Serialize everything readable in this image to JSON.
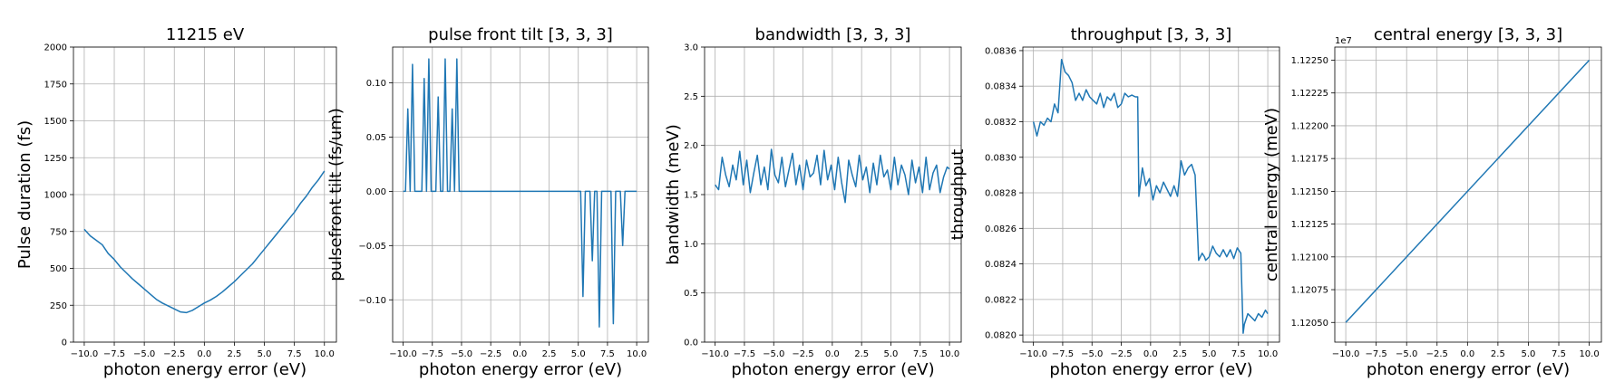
{
  "figure": {
    "panel_count": 5,
    "line_color": "#1f77b4",
    "grid": true
  },
  "chart_data": [
    {
      "type": "line",
      "title": "11215 eV",
      "xlabel": "photon energy error (eV)",
      "ylabel": "Pulse duration (fs)",
      "xlim": [
        -10.9,
        11.0
      ],
      "ylim": [
        0,
        2000
      ],
      "xticks": [
        -10,
        -7.5,
        -5,
        -2.5,
        0,
        2.5,
        5,
        7.5,
        10
      ],
      "xtick_labels": [
        "−10.0",
        "−7.5",
        "−5.0",
        "−2.5",
        "0.0",
        "2.5",
        "5.0",
        "7.5",
        "10.0"
      ],
      "yticks": [
        0,
        250,
        500,
        750,
        1000,
        1250,
        1500,
        1750,
        2000
      ],
      "ytick_labels": [
        "0",
        "250",
        "500",
        "750",
        "1000",
        "1250",
        "1500",
        "1750",
        "2000"
      ],
      "offset_label": "",
      "series": [
        {
          "x": [
            -10,
            -9.5,
            -9,
            -8.5,
            -8,
            -7.5,
            -7,
            -6.5,
            -6,
            -5.5,
            -5,
            -4.5,
            -4,
            -3.5,
            -3,
            -2.5,
            -2,
            -1.5,
            -1,
            -0.5,
            0,
            0.5,
            1,
            1.5,
            2,
            2.5,
            3,
            3.5,
            4,
            4.5,
            5,
            5.5,
            6,
            6.5,
            7,
            7.5,
            8,
            8.5,
            9,
            9.5,
            10
          ],
          "y": [
            765,
            720,
            690,
            660,
            600,
            560,
            510,
            470,
            430,
            395,
            360,
            325,
            290,
            265,
            245,
            225,
            205,
            200,
            215,
            240,
            265,
            285,
            310,
            340,
            375,
            410,
            450,
            490,
            530,
            580,
            630,
            680,
            730,
            780,
            830,
            880,
            940,
            990,
            1050,
            1100,
            1160
          ]
        }
      ]
    },
    {
      "type": "line",
      "title": "pulse front tilt [3, 3, 3]",
      "xlabel": "photon energy error (eV)",
      "ylabel": "pulsefront tilt (fs/um)",
      "xlim": [
        -10.9,
        11.0
      ],
      "ylim": [
        -0.139,
        0.133
      ],
      "xticks": [
        -10,
        -7.5,
        -5,
        -2.5,
        0,
        2.5,
        5,
        7.5,
        10
      ],
      "xtick_labels": [
        "−10.0",
        "−7.5",
        "−5.0",
        "−2.5",
        "0.0",
        "2.5",
        "5.0",
        "7.5",
        "10.0"
      ],
      "yticks": [
        -0.1,
        -0.05,
        0,
        0.05,
        0.1
      ],
      "ytick_labels": [
        "−0.10",
        "−0.05",
        "0.00",
        "0.05",
        "0.10"
      ],
      "offset_label": "",
      "series": [
        {
          "x": [
            -10,
            -9.8,
            -9.6,
            -9.4,
            -9.2,
            -9.0,
            -8.8,
            -8.6,
            -8.4,
            -8.2,
            -8.0,
            -7.8,
            -7.6,
            -7.4,
            -7.2,
            -7.0,
            -6.8,
            -6.6,
            -6.4,
            -6.2,
            -6.0,
            -5.8,
            -5.6,
            -5.4,
            -5.2,
            -5.0,
            -4.8,
            -4.6,
            -4.4,
            -4.2,
            5.2,
            5.4,
            5.6,
            5.8,
            6.0,
            6.2,
            6.4,
            6.6,
            6.8,
            7.0,
            7.2,
            7.4,
            7.6,
            7.8,
            8.0,
            8.2,
            8.4,
            8.6,
            8.8,
            9.0,
            9.2,
            9.4,
            9.6,
            9.8,
            10.0
          ],
          "y": [
            0,
            0,
            0.076,
            0,
            0.117,
            0,
            0,
            0,
            0,
            0.104,
            0,
            0.122,
            0,
            0,
            0,
            0.087,
            0,
            0,
            0.122,
            0,
            0,
            0.076,
            0,
            0.122,
            0,
            0,
            0,
            0,
            0,
            0,
            0,
            -0.097,
            0,
            0,
            0,
            -0.064,
            0,
            0,
            -0.125,
            0,
            0,
            0,
            0,
            0,
            -0.122,
            0,
            0,
            0,
            -0.05,
            0,
            0,
            0,
            0,
            0,
            0
          ]
        }
      ]
    },
    {
      "type": "line",
      "title": "bandwidth [3, 3, 3]",
      "xlabel": "photon energy error (eV)",
      "ylabel": "bandwidth (meV)",
      "xlim": [
        -10.9,
        11.0
      ],
      "ylim": [
        0,
        3.0
      ],
      "xticks": [
        -10,
        -7.5,
        -5,
        -2.5,
        0,
        2.5,
        5,
        7.5,
        10
      ],
      "xtick_labels": [
        "−10.0",
        "−7.5",
        "−5.0",
        "−2.5",
        "0.0",
        "2.5",
        "5.0",
        "7.5",
        "10.0"
      ],
      "yticks": [
        0,
        0.5,
        1.0,
        1.5,
        2.0,
        2.5,
        3.0
      ],
      "ytick_labels": [
        "0.0",
        "0.5",
        "1.0",
        "1.5",
        "2.0",
        "2.5",
        "3.0"
      ],
      "offset_label": "",
      "series": [
        {
          "x": [
            -10,
            -9.7,
            -9.4,
            -9.1,
            -8.8,
            -8.5,
            -8.2,
            -7.9,
            -7.6,
            -7.3,
            -7.0,
            -6.7,
            -6.4,
            -6.1,
            -5.8,
            -5.5,
            -5.2,
            -4.9,
            -4.6,
            -4.3,
            -4.0,
            -3.7,
            -3.4,
            -3.1,
            -2.8,
            -2.5,
            -2.2,
            -1.9,
            -1.6,
            -1.3,
            -1.0,
            -0.7,
            -0.4,
            -0.1,
            0.2,
            0.5,
            0.8,
            1.1,
            1.4,
            1.7,
            2.0,
            2.3,
            2.6,
            2.9,
            3.2,
            3.5,
            3.8,
            4.1,
            4.4,
            4.7,
            5.0,
            5.3,
            5.6,
            5.9,
            6.2,
            6.5,
            6.8,
            7.1,
            7.4,
            7.7,
            8.0,
            8.3,
            8.6,
            8.9,
            9.2,
            9.5,
            9.8,
            10.0
          ],
          "y": [
            1.6,
            1.55,
            1.88,
            1.7,
            1.58,
            1.8,
            1.65,
            1.94,
            1.6,
            1.85,
            1.52,
            1.72,
            1.9,
            1.6,
            1.78,
            1.55,
            1.96,
            1.7,
            1.62,
            1.88,
            1.58,
            1.75,
            1.92,
            1.6,
            1.8,
            1.55,
            1.85,
            1.68,
            1.72,
            1.9,
            1.6,
            1.95,
            1.65,
            1.8,
            1.55,
            1.88,
            1.62,
            1.42,
            1.85,
            1.7,
            1.58,
            1.9,
            1.65,
            1.78,
            1.52,
            1.82,
            1.6,
            1.9,
            1.68,
            1.75,
            1.55,
            1.88,
            1.6,
            1.8,
            1.7,
            1.5,
            1.85,
            1.62,
            1.78,
            1.52,
            1.88,
            1.55,
            1.72,
            1.8,
            1.52,
            1.68,
            1.78,
            1.76
          ]
        }
      ]
    },
    {
      "type": "line",
      "title": "throughput [3, 3, 3]",
      "xlabel": "photon energy error (eV)",
      "ylabel": "throughput",
      "xlim": [
        -10.9,
        11.0
      ],
      "ylim": [
        0.08196,
        0.08362
      ],
      "xticks": [
        -10,
        -7.5,
        -5,
        -2.5,
        0,
        2.5,
        5,
        7.5,
        10
      ],
      "xtick_labels": [
        "−10.0",
        "−7.5",
        "−5.0",
        "−2.5",
        "0.0",
        "2.5",
        "5.0",
        "7.5",
        "10.0"
      ],
      "yticks": [
        0.082,
        0.0822,
        0.0824,
        0.0826,
        0.0828,
        0.083,
        0.0832,
        0.0834,
        0.0836
      ],
      "ytick_labels": [
        "0.0820",
        "0.0822",
        "0.0824",
        "0.0826",
        "0.0828",
        "0.0830",
        "0.0832",
        "0.0834",
        "0.0836"
      ],
      "offset_label": "",
      "series": [
        {
          "x": [
            -10,
            -9.7,
            -9.4,
            -9.1,
            -8.8,
            -8.5,
            -8.2,
            -7.9,
            -7.6,
            -7.3,
            -7.0,
            -6.7,
            -6.4,
            -6.1,
            -5.8,
            -5.5,
            -5.2,
            -4.9,
            -4.6,
            -4.3,
            -4.0,
            -3.7,
            -3.4,
            -3.1,
            -2.8,
            -2.5,
            -2.2,
            -1.9,
            -1.6,
            -1.3,
            -1.1,
            -1.0,
            -0.7,
            -0.4,
            -0.1,
            0.2,
            0.5,
            0.8,
            1.1,
            1.4,
            1.7,
            2.0,
            2.3,
            2.6,
            2.9,
            3.2,
            3.5,
            3.8,
            4.1,
            4.4,
            4.6,
            4.7,
            5.0,
            5.3,
            5.6,
            5.9,
            6.2,
            6.5,
            6.8,
            7.1,
            7.4,
            7.7,
            7.9,
            8.0,
            8.3,
            8.6,
            8.9,
            9.2,
            9.5,
            9.8,
            10.0
          ],
          "y": [
            0.0832,
            0.08312,
            0.0832,
            0.08318,
            0.08322,
            0.0832,
            0.0833,
            0.08325,
            0.08355,
            0.08348,
            0.08346,
            0.08342,
            0.08332,
            0.08336,
            0.08332,
            0.08338,
            0.08334,
            0.08332,
            0.0833,
            0.08336,
            0.08328,
            0.08334,
            0.08332,
            0.08336,
            0.08328,
            0.0833,
            0.08336,
            0.08334,
            0.08335,
            0.08334,
            0.08334,
            0.08278,
            0.08294,
            0.08284,
            0.08288,
            0.08276,
            0.08284,
            0.0828,
            0.08286,
            0.08282,
            0.08278,
            0.08284,
            0.08278,
            0.08298,
            0.0829,
            0.08294,
            0.08296,
            0.0829,
            0.08242,
            0.08246,
            0.08244,
            0.08242,
            0.08244,
            0.0825,
            0.08246,
            0.08244,
            0.08248,
            0.08244,
            0.08248,
            0.08243,
            0.08249,
            0.08246,
            0.08201,
            0.08206,
            0.08212,
            0.0821,
            0.08208,
            0.08212,
            0.0821,
            0.08214,
            0.08212
          ]
        }
      ]
    },
    {
      "type": "line",
      "title": "central energy [3, 3, 3]",
      "xlabel": "photon energy error (eV)",
      "ylabel": "central energy (meV)",
      "xlim": [
        -10.9,
        11.0
      ],
      "ylim": [
        11203.5,
        11226.0
      ],
      "xticks": [
        -10,
        -7.5,
        -5,
        -2.5,
        0,
        2.5,
        5,
        7.5,
        10
      ],
      "xtick_labels": [
        "−10.0",
        "−7.5",
        "−5.0",
        "−2.5",
        "0.0",
        "2.5",
        "5.0",
        "7.5",
        "10.0"
      ],
      "yticks": [
        11205,
        11207.5,
        11210,
        11212.5,
        11215,
        11217.5,
        11220,
        11222.5,
        11225
      ],
      "ytick_labels": [
        "1.12050",
        "1.12075",
        "1.12100",
        "1.12125",
        "1.12150",
        "1.12175",
        "1.12200",
        "1.12225",
        "1.12250"
      ],
      "offset_label": "1e7",
      "series": [
        {
          "x": [
            -10,
            10
          ],
          "y": [
            11205,
            11225
          ]
        }
      ]
    }
  ]
}
